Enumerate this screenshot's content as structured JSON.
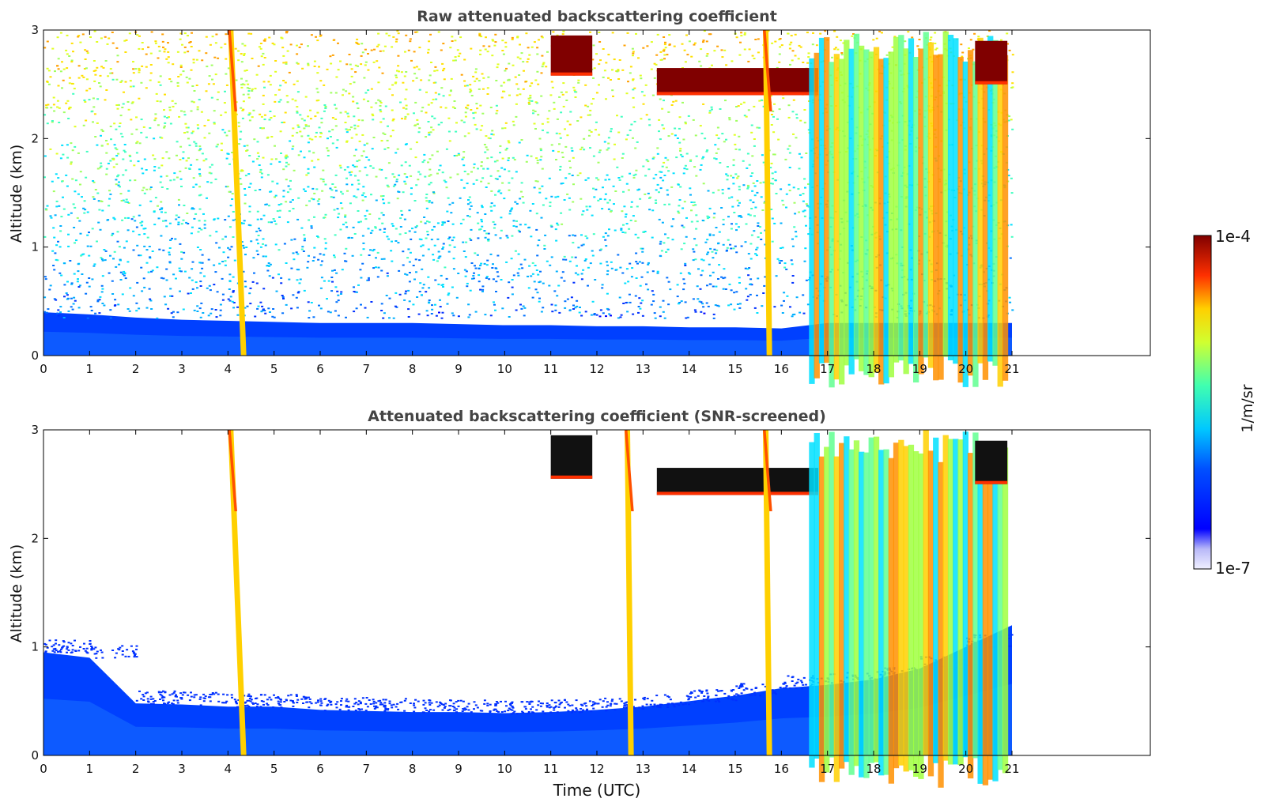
{
  "figure": {
    "xlabel": "Time (UTC)",
    "colorbar": {
      "label": "1/m/sr",
      "max_label": "1e-4",
      "min_label": "1e-7",
      "range": [
        1e-07,
        0.0001
      ],
      "scale": "log",
      "colormap": "jet"
    }
  },
  "chart_data": [
    {
      "type": "heatmap",
      "title": "Raw attenuated backscattering coefficient",
      "xlabel": "",
      "ylabel": "Altitude (km)",
      "xlim": [
        0,
        24
      ],
      "ylim": [
        0,
        3
      ],
      "xticks": [
        0,
        1,
        2,
        3,
        4,
        5,
        6,
        7,
        8,
        9,
        10,
        11,
        12,
        13,
        14,
        15,
        16,
        17,
        18,
        19,
        20,
        21
      ],
      "yticks": [
        0,
        1,
        2,
        3
      ],
      "data_end_hour": 21,
      "boundary_layer_top_km": [
        0.4,
        0.38,
        0.35,
        0.33,
        0.32,
        0.31,
        0.3,
        0.3,
        0.3,
        0.29,
        0.28,
        0.28,
        0.27,
        0.27,
        0.26,
        0.26,
        0.25,
        0.3,
        0.3,
        0.3,
        0.3,
        0.3
      ],
      "cloud_layers": [
        {
          "start": 4.0,
          "end": 4.4,
          "bottom_km": 0.0,
          "top_km": 3.0,
          "kind": "fall-streak"
        },
        {
          "start": 11.0,
          "end": 11.9,
          "bottom_km": 2.58,
          "top_km": 2.95,
          "kind": "cirrus"
        },
        {
          "start": 13.3,
          "end": 16.8,
          "bottom_km": 2.4,
          "top_km": 2.65,
          "kind": "cirrus"
        },
        {
          "start": 15.6,
          "end": 15.8,
          "bottom_km": 0.0,
          "top_km": 3.0,
          "kind": "fall-streak"
        },
        {
          "start": 16.6,
          "end": 20.9,
          "bottom_km": 0.0,
          "top_km": 3.0,
          "kind": "precipitating"
        },
        {
          "start": 20.2,
          "end": 20.9,
          "bottom_km": 2.5,
          "top_km": 2.9,
          "kind": "cirrus"
        }
      ]
    },
    {
      "type": "heatmap",
      "title": "Attenuated backscattering coefficient (SNR-screened)",
      "xlabel": "Time (UTC)",
      "ylabel": "Altitude (km)",
      "xlim": [
        0,
        24
      ],
      "ylim": [
        0,
        3
      ],
      "xticks": [
        0,
        1,
        2,
        3,
        4,
        5,
        6,
        7,
        8,
        9,
        10,
        11,
        12,
        13,
        14,
        15,
        16,
        17,
        18,
        19,
        20,
        21
      ],
      "yticks": [
        0,
        1,
        2,
        3
      ],
      "data_end_hour": 21,
      "screened_layer_top_km": [
        0.95,
        0.9,
        0.48,
        0.47,
        0.45,
        0.45,
        0.42,
        0.41,
        0.4,
        0.4,
        0.39,
        0.4,
        0.42,
        0.45,
        0.5,
        0.55,
        0.62,
        0.65,
        0.7,
        0.8,
        1.0,
        1.2
      ],
      "cloud_layers": [
        {
          "start": 4.0,
          "end": 4.4,
          "bottom_km": 0.0,
          "top_km": 3.0,
          "kind": "fall-streak"
        },
        {
          "start": 11.0,
          "end": 11.9,
          "bottom_km": 2.55,
          "top_km": 2.95,
          "kind": "cirrus"
        },
        {
          "start": 12.6,
          "end": 12.8,
          "bottom_km": 0.0,
          "top_km": 3.0,
          "kind": "fall-streak"
        },
        {
          "start": 13.3,
          "end": 16.8,
          "bottom_km": 2.4,
          "top_km": 2.65,
          "kind": "cirrus"
        },
        {
          "start": 15.6,
          "end": 15.8,
          "bottom_km": 0.0,
          "top_km": 3.0,
          "kind": "fall-streak"
        },
        {
          "start": 16.6,
          "end": 20.9,
          "bottom_km": 0.0,
          "top_km": 3.0,
          "kind": "precipitating"
        },
        {
          "start": 20.2,
          "end": 20.9,
          "bottom_km": 2.5,
          "top_km": 2.9,
          "kind": "cirrus"
        }
      ]
    }
  ]
}
